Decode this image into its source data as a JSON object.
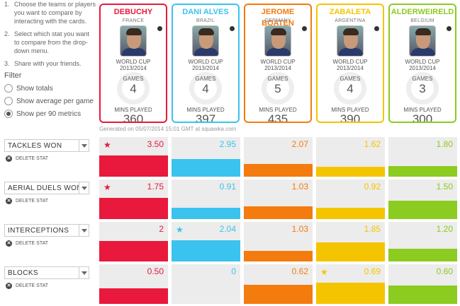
{
  "instructions": [
    {
      "num": "1.",
      "text": "Choose the teams or players you want to compare by interacting with the cards."
    },
    {
      "num": "2.",
      "text": "Select which stat you want to compare from the drop-down menu."
    },
    {
      "num": "3.",
      "text": "Share with your friends."
    }
  ],
  "filter": {
    "title": "Filter",
    "options": [
      "Show totals",
      "Show average per game",
      "Show per 90 metrics"
    ],
    "selected_index": 2
  },
  "players": [
    {
      "name": "DEBUCHY",
      "country": "FRANCE",
      "competition": "WORLD CUP",
      "season": "2013/2014",
      "games_label": "GAMES",
      "games": "4",
      "mins_label": "MINS PLAYED",
      "mins": "360",
      "color": "#e8193c"
    },
    {
      "name": "DANI ALVES",
      "country": "BRAZIL",
      "competition": "WORLD CUP",
      "season": "2013/2014",
      "games_label": "GAMES",
      "games": "4",
      "mins_label": "MINS PLAYED",
      "mins": "397",
      "color": "#3bc3ef"
    },
    {
      "name": "JEROME BOATEN",
      "country": "GERMANY",
      "competition": "WORLD CUP",
      "season": "2013/2014",
      "games_label": "GAMES",
      "games": "5",
      "mins_label": "MINS PLAYED",
      "mins": "435",
      "color": "#f47b0e"
    },
    {
      "name": "ZABALETA",
      "country": "ARGENTINA",
      "competition": "WORLD CUP",
      "season": "2013/2014",
      "games_label": "GAMES",
      "games": "4",
      "mins_label": "MINS PLAYED",
      "mins": "390",
      "color": "#f5c400"
    },
    {
      "name": "ALDERWEIRELD",
      "country": "BELGIUM",
      "competition": "WORLD CUP",
      "season": "2013/2014",
      "games_label": "GAMES",
      "games": "3",
      "mins_label": "MINS PLAYED",
      "mins": "300",
      "color": "#8ccb1f"
    }
  ],
  "generated": "Generated on 05/07/2014 15:01 GMT at squawka.com",
  "stats": [
    {
      "label": "TACKLES WON",
      "delete": "DELETE STAT",
      "values": [
        "3.50",
        "2.95",
        "2.07",
        "1.62",
        "1.80"
      ],
      "numeric": [
        3.5,
        2.95,
        2.07,
        1.62,
        1.8
      ],
      "best_index": 0
    },
    {
      "label": "AERIAL DUELS WON",
      "delete": "DELETE STAT",
      "values": [
        "1.75",
        "0.91",
        "1.03",
        "0.92",
        "1.50"
      ],
      "numeric": [
        1.75,
        0.91,
        1.03,
        0.92,
        1.5
      ],
      "best_index": 0
    },
    {
      "label": "INTERCEPTIONS",
      "delete": "DELETE STAT",
      "values": [
        "2",
        "2.04",
        "1.03",
        "1.85",
        "1.20"
      ],
      "numeric": [
        2,
        2.04,
        1.03,
        1.85,
        1.2
      ],
      "best_index": 1
    },
    {
      "label": "BLOCKS",
      "delete": "DELETE STAT",
      "values": [
        "0.50",
        "0",
        "0.62",
        "0.69",
        "0.60"
      ],
      "numeric": [
        0.5,
        0,
        0.62,
        0.69,
        0.6
      ],
      "best_index": 3
    }
  ],
  "icons": {
    "star": "★",
    "delete": "✕"
  }
}
